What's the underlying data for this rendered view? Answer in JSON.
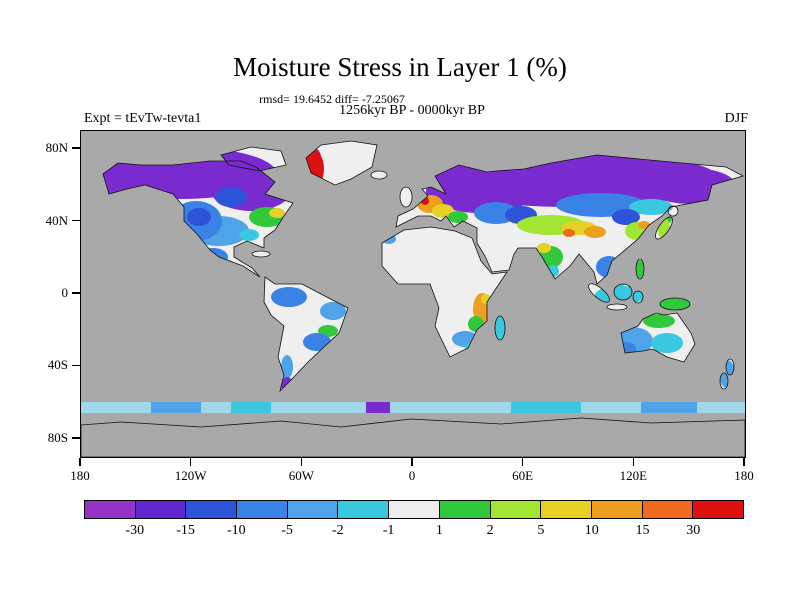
{
  "header": {
    "title": "Moisture Stress in Layer 1 (%)",
    "stats": "rmsd= 19.6452 diff= -7.25067",
    "period": "1256kyr BP - 0000kyr BP",
    "experiment": "Expt = tEvTw-tevta1",
    "season": "DJF"
  },
  "chart_data": {
    "type": "heatmap",
    "title": "Moisture Stress in Layer 1 (%)",
    "stats": {
      "rmsd": 19.6452,
      "diff": -7.25067
    },
    "period": "1256kyr BP - 0000kyr BP",
    "experiment": "tEvTw-tevta1",
    "season": "DJF",
    "map": "global equirectangular world map, lat 90N-90S, lon 180W-180E, anomaly field shaded on land",
    "lat_ticks": [
      {
        "label": "80N",
        "value": 80
      },
      {
        "label": "40N",
        "value": 40
      },
      {
        "label": "0",
        "value": 0
      },
      {
        "label": "40S",
        "value": -40
      },
      {
        "label": "80S",
        "value": -80
      }
    ],
    "lon_ticks": [
      {
        "label": "180",
        "value": -180
      },
      {
        "label": "120W",
        "value": -120
      },
      {
        "label": "60W",
        "value": -60
      },
      {
        "label": "0",
        "value": 0
      },
      {
        "label": "60E",
        "value": 60
      },
      {
        "label": "120E",
        "value": 120
      },
      {
        "label": "180",
        "value": 180
      }
    ],
    "colorbar": {
      "levels": [
        -30,
        -15,
        -10,
        -5,
        -2,
        -1,
        1,
        2,
        5,
        10,
        15,
        30
      ],
      "colors": [
        "#9632c8",
        "#5f27cd",
        "#2d53d8",
        "#3b82e6",
        "#4fa3e8",
        "#39c8e0",
        "#ededed",
        "#32c83c",
        "#a0e632",
        "#e6d226",
        "#ef9f1f",
        "#ef6a1f",
        "#dd1111"
      ],
      "units": "%"
    },
    "ocean_color": "#a9a9a9",
    "land_neutral_color": "#efefef"
  }
}
